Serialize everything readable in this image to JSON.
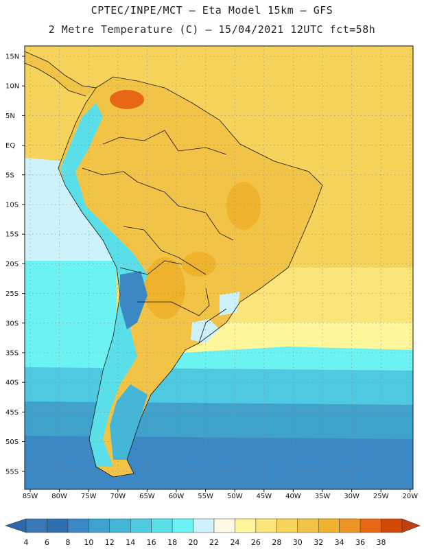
{
  "title_line1": "CPTEC/INPE/MCT –  Eta Model 15km – GFS",
  "title_line2": "2 Metre Temperature (C) – 15/04/2021 12UTC fct=58h",
  "lat_labels": [
    "15N",
    "10N",
    "5N",
    "EQ",
    "5S",
    "10S",
    "15S",
    "20S",
    "25S",
    "30S",
    "35S",
    "40S",
    "45S",
    "50S",
    "55S"
  ],
  "lon_labels": [
    "85W",
    "80W",
    "75W",
    "70W",
    "65W",
    "60W",
    "55W",
    "50W",
    "45W",
    "40W",
    "35W",
    "30W",
    "25W",
    "20W"
  ],
  "colorbar": {
    "labels": [
      "4",
      "6",
      "8",
      "10",
      "12",
      "14",
      "16",
      "18",
      "20",
      "22",
      "24",
      "26",
      "28",
      "30",
      "32",
      "34",
      "36",
      "38"
    ],
    "colors": [
      "#3a78b8",
      "#2f6fb0",
      "#3b88c4",
      "#3fa2cd",
      "#46b6d8",
      "#4fc9e0",
      "#5adfe8",
      "#6cf2f2",
      "#cdf2fb",
      "#fff8e2",
      "#fff59a",
      "#fbe479",
      "#f6d35a",
      "#f1c447",
      "#efb22c",
      "#ee9424",
      "#e76714",
      "#d34a08"
    ],
    "under_color": "#2f68a8",
    "over_color": "#c0400e"
  },
  "colors": {
    "ocean_warm": "#f6d35a",
    "ocean_subtropic": "#fbe479",
    "ocean_cool": "#fff59a",
    "ocean_cold1": "#6cf2f2",
    "ocean_cold2": "#4fc9e0",
    "ocean_cold3": "#3fa2cd",
    "ocean_cold4": "#3b88c4",
    "land": "#f1c447",
    "land_hot": "#efb22c",
    "land_hotter": "#e76714",
    "andes": "#5adfe8",
    "andes_peak": "#3b88c4",
    "patagonia": "#46b6d8"
  }
}
